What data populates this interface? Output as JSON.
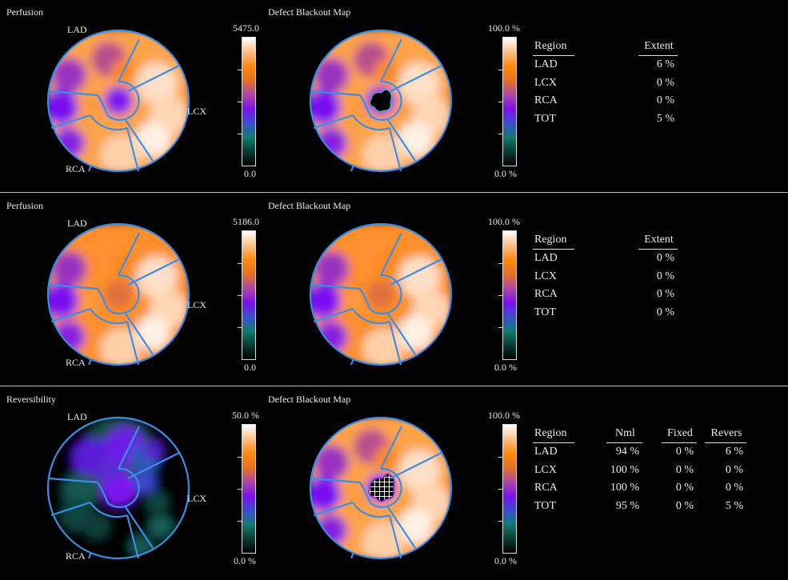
{
  "colormap": {
    "stops": [
      "#000000",
      "#0b3b33",
      "#137a6c",
      "#3a4fd0",
      "#7a10f0",
      "#b04aa0",
      "#e6721f",
      "#ff8a10",
      "#ffc08a",
      "#ffffff"
    ]
  },
  "panels": [
    {
      "left_title": "Perfusion",
      "right_title": "Defect Blackout Map",
      "territory_labels": {
        "lad": "LAD",
        "lcx": "LCX",
        "rca": "RCA"
      },
      "left_scale": {
        "max": "5475.0",
        "min": "0.0"
      },
      "right_scale": {
        "max": "100.0 %",
        "min": "0.0 %"
      },
      "map_style": "perfusion-stress",
      "blackout": "black",
      "table": {
        "columns": [
          "Region",
          "Extent"
        ],
        "rows": [
          {
            "region": "LAD",
            "values": [
              "6 %"
            ]
          },
          {
            "region": "LCX",
            "values": [
              "0 %"
            ]
          },
          {
            "region": "RCA",
            "values": [
              "0 %"
            ]
          },
          {
            "region": "TOT",
            "values": [
              "5 %"
            ]
          }
        ]
      }
    },
    {
      "left_title": "Perfusion",
      "right_title": "Defect Blackout Map",
      "territory_labels": {
        "lad": "LAD",
        "lcx": "LCX",
        "rca": "RCA"
      },
      "left_scale": {
        "max": "5186.0",
        "min": "0.0"
      },
      "right_scale": {
        "max": "100.0 %",
        "min": "0.0 %"
      },
      "map_style": "perfusion-rest",
      "blackout": "none",
      "table": {
        "columns": [
          "Region",
          "Extent"
        ],
        "rows": [
          {
            "region": "LAD",
            "values": [
              "0 %"
            ]
          },
          {
            "region": "LCX",
            "values": [
              "0 %"
            ]
          },
          {
            "region": "RCA",
            "values": [
              "0 %"
            ]
          },
          {
            "region": "TOT",
            "values": [
              "0 %"
            ]
          }
        ]
      }
    },
    {
      "left_title": "Reversibility",
      "right_title": "Defect Blackout Map",
      "territory_labels": {
        "lad": "LAD",
        "lcx": "LCX",
        "rca": "RCA"
      },
      "left_scale": {
        "max": "50.0 %",
        "min": "0.0 %"
      },
      "right_scale": {
        "max": "100.0 %",
        "min": "0.0 %"
      },
      "map_style": "reversibility",
      "blackout": "crosshatch",
      "table": {
        "columns": [
          "Region",
          "Nml",
          "Fixed",
          "Revers"
        ],
        "rows": [
          {
            "region": "LAD",
            "values": [
              "94 %",
              "0 %",
              "6 %"
            ]
          },
          {
            "region": "LCX",
            "values": [
              "100 %",
              "0 %",
              "0 %"
            ]
          },
          {
            "region": "RCA",
            "values": [
              "100 %",
              "0 %",
              "0 %"
            ]
          },
          {
            "region": "TOT",
            "values": [
              "95 %",
              "0 %",
              "5 %"
            ]
          }
        ]
      }
    }
  ]
}
